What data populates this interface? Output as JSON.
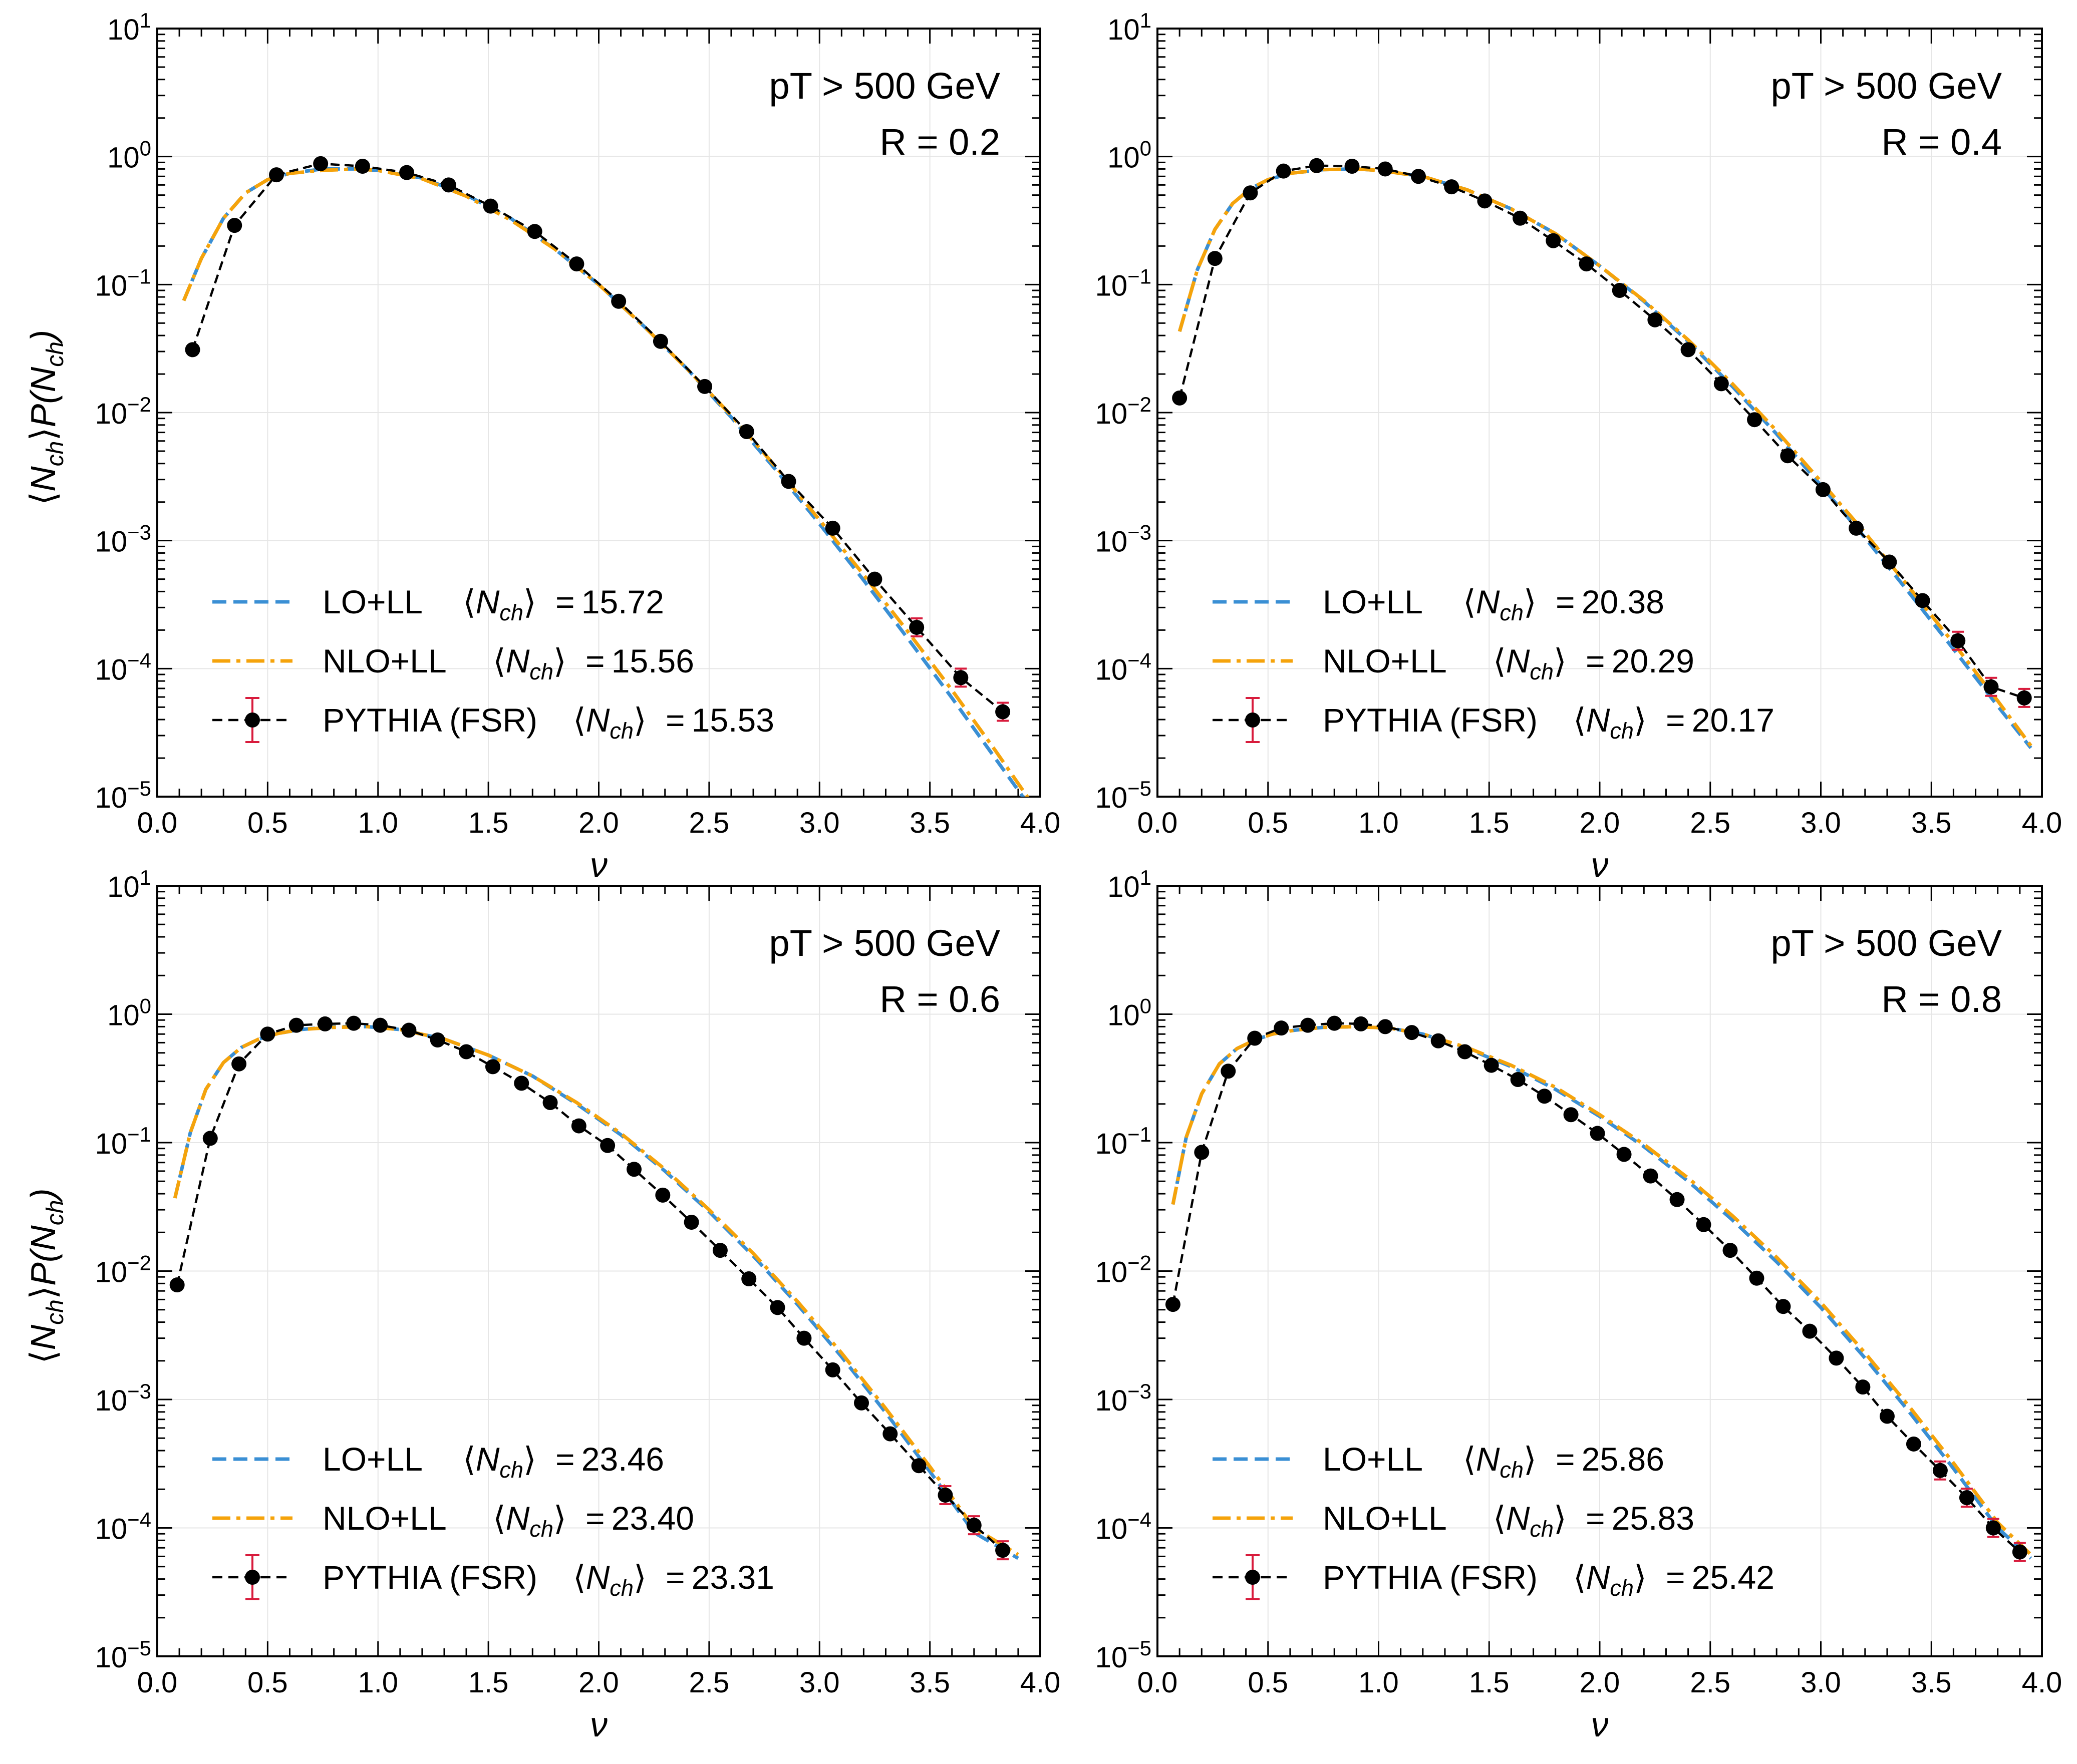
{
  "chart_data": [
    {
      "type": "line",
      "annotations": [
        "pT > 500 GeV",
        "R = 0.2"
      ],
      "xlabel": "ν",
      "ylabel": "⟨N_ch⟩P(N_ch)",
      "xlim": [
        0.0,
        4.0
      ],
      "ylim": [
        1e-05,
        10
      ],
      "yscale": "log",
      "grid": true,
      "legend_position": "lower-left",
      "series": [
        {
          "name": "LO+LL",
          "mean_label": "15.72",
          "style": "dashed",
          "x": [
            0.12,
            0.2,
            0.3,
            0.4,
            0.5,
            0.6,
            0.75,
            0.9,
            1.0,
            1.2,
            1.4,
            1.6,
            1.8,
            2.0,
            2.2,
            2.4,
            2.6,
            2.8,
            3.0,
            3.2,
            3.4,
            3.6,
            3.8,
            3.95
          ],
          "y": [
            0.075,
            0.16,
            0.33,
            0.52,
            0.66,
            0.74,
            0.8,
            0.8,
            0.78,
            0.68,
            0.5,
            0.33,
            0.19,
            0.1,
            0.048,
            0.022,
            0.0092,
            0.0036,
            0.00135,
            0.00049,
            0.000172,
            5.9e-05,
            1.95e-05,
            8.5e-06
          ]
        },
        {
          "name": "NLO+LL",
          "mean_label": "15.56",
          "style": "dashdot",
          "x": [
            0.12,
            0.2,
            0.3,
            0.4,
            0.5,
            0.6,
            0.75,
            0.9,
            1.0,
            1.2,
            1.4,
            1.6,
            1.8,
            2.0,
            2.2,
            2.4,
            2.6,
            2.8,
            3.0,
            3.2,
            3.4,
            3.6,
            3.8,
            3.95
          ],
          "y": [
            0.075,
            0.16,
            0.33,
            0.52,
            0.66,
            0.74,
            0.78,
            0.8,
            0.78,
            0.67,
            0.49,
            0.32,
            0.19,
            0.1,
            0.048,
            0.022,
            0.0095,
            0.0038,
            0.00145,
            0.00054,
            0.000195,
            6.8e-05,
            2.25e-05,
            9.5e-06
          ]
        },
        {
          "name": "PYTHIA (FSR)",
          "mean_label": "15.53",
          "style": "dashed-markers",
          "x": [
            0.16,
            0.35,
            0.54,
            0.74,
            0.93,
            1.13,
            1.32,
            1.51,
            1.71,
            1.9,
            2.09,
            2.28,
            2.48,
            2.67,
            2.86,
            3.06,
            3.25,
            3.44,
            3.64,
            3.83
          ],
          "y": [
            0.031,
            0.29,
            0.72,
            0.88,
            0.84,
            0.75,
            0.6,
            0.41,
            0.26,
            0.145,
            0.074,
            0.036,
            0.016,
            0.0071,
            0.0029,
            0.00125,
            0.0005,
            0.00021,
            8.5e-05,
            4.6e-05
          ]
        }
      ],
      "mean_symbol": "N",
      "mean_subscript": "ch",
      "equals": "="
    },
    {
      "type": "line",
      "annotations": [
        "pT > 500 GeV",
        "R = 0.4"
      ],
      "xlabel": "ν",
      "ylabel": "",
      "xlim": [
        0.0,
        4.0
      ],
      "ylim": [
        1e-05,
        10
      ],
      "yscale": "log",
      "grid": true,
      "legend_position": "lower-left",
      "series": [
        {
          "name": "LO+LL",
          "mean_label": "20.38",
          "style": "dashed",
          "x": [
            0.1,
            0.18,
            0.26,
            0.34,
            0.42,
            0.5,
            0.6,
            0.75,
            0.9,
            1.0,
            1.2,
            1.4,
            1.6,
            1.8,
            2.0,
            2.2,
            2.4,
            2.6,
            2.8,
            3.0,
            3.2,
            3.4,
            3.6,
            3.8,
            3.95
          ],
          "y": [
            0.043,
            0.13,
            0.27,
            0.43,
            0.56,
            0.66,
            0.74,
            0.79,
            0.8,
            0.78,
            0.7,
            0.55,
            0.39,
            0.25,
            0.14,
            0.074,
            0.036,
            0.016,
            0.0068,
            0.0027,
            0.00105,
            0.00039,
            0.000142,
            5.1e-05,
            2.4e-05
          ]
        },
        {
          "name": "NLO+LL",
          "mean_label": "20.29",
          "style": "dashdot",
          "x": [
            0.1,
            0.18,
            0.26,
            0.34,
            0.42,
            0.5,
            0.6,
            0.75,
            0.9,
            1.0,
            1.2,
            1.4,
            1.6,
            1.8,
            2.0,
            2.2,
            2.4,
            2.6,
            2.8,
            3.0,
            3.2,
            3.4,
            3.6,
            3.8,
            3.95
          ],
          "y": [
            0.043,
            0.13,
            0.27,
            0.43,
            0.56,
            0.66,
            0.74,
            0.79,
            0.8,
            0.78,
            0.7,
            0.55,
            0.39,
            0.25,
            0.14,
            0.075,
            0.037,
            0.0168,
            0.0072,
            0.0029,
            0.00115,
            0.00043,
            0.000158,
            5.6e-05,
            2.5e-05
          ]
        },
        {
          "name": "PYTHIA (FSR)",
          "mean_label": "20.17",
          "style": "dashed-markers",
          "x": [
            0.1,
            0.26,
            0.42,
            0.57,
            0.72,
            0.88,
            1.03,
            1.18,
            1.33,
            1.48,
            1.64,
            1.79,
            1.94,
            2.09,
            2.25,
            2.4,
            2.55,
            2.7,
            2.85,
            3.01,
            3.16,
            3.31,
            3.46,
            3.62,
            3.77,
            3.92
          ],
          "y": [
            0.013,
            0.16,
            0.52,
            0.77,
            0.85,
            0.84,
            0.8,
            0.7,
            0.58,
            0.45,
            0.33,
            0.22,
            0.145,
            0.09,
            0.053,
            0.031,
            0.0168,
            0.0088,
            0.0046,
            0.0025,
            0.00125,
            0.00068,
            0.00034,
            0.000165,
            7.2e-05,
            5.9e-05
          ]
        }
      ],
      "mean_symbol": "N",
      "mean_subscript": "ch",
      "equals": "="
    },
    {
      "type": "line",
      "annotations": [
        "pT > 500 GeV",
        "R = 0.6"
      ],
      "xlabel": "ν",
      "ylabel": "⟨N_ch⟩P(N_ch)",
      "xlim": [
        0.0,
        4.0
      ],
      "ylim": [
        1e-05,
        10
      ],
      "yscale": "log",
      "grid": true,
      "legend_position": "lower-left",
      "series": [
        {
          "name": "LO+LL",
          "mean_label": "23.46",
          "style": "dashed",
          "x": [
            0.08,
            0.15,
            0.22,
            0.3,
            0.38,
            0.46,
            0.55,
            0.65,
            0.8,
            0.95,
            1.1,
            1.3,
            1.5,
            1.7,
            1.9,
            2.1,
            2.3,
            2.5,
            2.7,
            2.9,
            3.1,
            3.3,
            3.5,
            3.7,
            3.9
          ],
          "y": [
            0.037,
            0.12,
            0.26,
            0.42,
            0.55,
            0.64,
            0.71,
            0.76,
            0.8,
            0.8,
            0.76,
            0.64,
            0.48,
            0.33,
            0.2,
            0.115,
            0.06,
            0.029,
            0.0131,
            0.0055,
            0.00215,
            0.00079,
            0.000275,
            9.2e-05,
            5.8e-05
          ]
        },
        {
          "name": "NLO+LL",
          "mean_label": "23.40",
          "style": "dashdot",
          "x": [
            0.08,
            0.15,
            0.22,
            0.3,
            0.38,
            0.46,
            0.55,
            0.65,
            0.8,
            0.95,
            1.1,
            1.3,
            1.5,
            1.7,
            1.9,
            2.1,
            2.3,
            2.5,
            2.7,
            2.9,
            3.1,
            3.3,
            3.5,
            3.7,
            3.9
          ],
          "y": [
            0.037,
            0.12,
            0.26,
            0.42,
            0.55,
            0.64,
            0.71,
            0.76,
            0.79,
            0.8,
            0.76,
            0.64,
            0.48,
            0.33,
            0.205,
            0.118,
            0.062,
            0.03,
            0.0137,
            0.0058,
            0.0023,
            0.00085,
            0.0003,
            0.0001,
            6.2e-05
          ]
        },
        {
          "name": "PYTHIA (FSR)",
          "mean_label": "23.31",
          "style": "dashed-markers",
          "x": [
            0.09,
            0.24,
            0.37,
            0.5,
            0.63,
            0.76,
            0.89,
            1.01,
            1.14,
            1.27,
            1.4,
            1.52,
            1.65,
            1.78,
            1.91,
            2.04,
            2.16,
            2.29,
            2.42,
            2.55,
            2.68,
            2.81,
            2.93,
            3.06,
            3.19,
            3.32,
            3.45,
            3.57,
            3.7,
            3.83
          ],
          "y": [
            0.0078,
            0.108,
            0.41,
            0.7,
            0.82,
            0.84,
            0.85,
            0.82,
            0.75,
            0.63,
            0.51,
            0.39,
            0.29,
            0.205,
            0.135,
            0.095,
            0.062,
            0.039,
            0.024,
            0.0145,
            0.0087,
            0.0052,
            0.003,
            0.0017,
            0.00094,
            0.00054,
            0.000305,
            0.00018,
            0.000105,
            6.7e-05
          ]
        }
      ],
      "mean_symbol": "N",
      "mean_subscript": "ch",
      "equals": "="
    },
    {
      "type": "line",
      "annotations": [
        "pT > 500 GeV",
        "R = 0.8"
      ],
      "xlabel": "ν",
      "ylabel": "",
      "xlim": [
        0.0,
        4.0
      ],
      "ylim": [
        1e-05,
        10
      ],
      "yscale": "log",
      "grid": true,
      "legend_position": "lower-left",
      "series": [
        {
          "name": "LO+LL",
          "mean_label": "25.86",
          "style": "dashed",
          "x": [
            0.07,
            0.13,
            0.2,
            0.28,
            0.36,
            0.44,
            0.52,
            0.62,
            0.75,
            0.9,
            1.05,
            1.2,
            1.4,
            1.6,
            1.8,
            2.0,
            2.2,
            2.4,
            2.6,
            2.8,
            3.0,
            3.2,
            3.4,
            3.6,
            3.8,
            3.95
          ],
          "y": [
            0.033,
            0.11,
            0.24,
            0.41,
            0.54,
            0.63,
            0.7,
            0.75,
            0.79,
            0.8,
            0.78,
            0.7,
            0.54,
            0.39,
            0.26,
            0.16,
            0.093,
            0.05,
            0.025,
            0.0118,
            0.0052,
            0.0021,
            0.0008,
            0.00029,
            0.0001,
            5.8e-05
          ]
        },
        {
          "name": "NLO+LL",
          "mean_label": "25.83",
          "style": "dashdot",
          "x": [
            0.07,
            0.13,
            0.2,
            0.28,
            0.36,
            0.44,
            0.52,
            0.62,
            0.75,
            0.9,
            1.05,
            1.2,
            1.4,
            1.6,
            1.8,
            2.0,
            2.2,
            2.4,
            2.6,
            2.8,
            3.0,
            3.2,
            3.4,
            3.6,
            3.8,
            3.95
          ],
          "y": [
            0.033,
            0.11,
            0.24,
            0.41,
            0.54,
            0.63,
            0.7,
            0.75,
            0.79,
            0.8,
            0.78,
            0.7,
            0.55,
            0.4,
            0.27,
            0.165,
            0.097,
            0.053,
            0.027,
            0.0128,
            0.0057,
            0.0023,
            0.00088,
            0.00032,
            0.00011,
            6.2e-05
          ]
        },
        {
          "name": "PYTHIA (FSR)",
          "mean_label": "25.42",
          "style": "dashed-markers",
          "x": [
            0.07,
            0.2,
            0.32,
            0.44,
            0.56,
            0.68,
            0.8,
            0.92,
            1.03,
            1.15,
            1.27,
            1.39,
            1.51,
            1.63,
            1.75,
            1.87,
            1.99,
            2.11,
            2.23,
            2.35,
            2.47,
            2.59,
            2.71,
            2.83,
            2.95,
            3.07,
            3.19,
            3.3,
            3.42,
            3.54,
            3.66,
            3.78,
            3.9
          ],
          "y": [
            0.0055,
            0.084,
            0.36,
            0.65,
            0.78,
            0.82,
            0.85,
            0.84,
            0.8,
            0.72,
            0.62,
            0.51,
            0.4,
            0.31,
            0.23,
            0.165,
            0.118,
            0.081,
            0.055,
            0.036,
            0.023,
            0.0145,
            0.0088,
            0.0053,
            0.0034,
            0.0021,
            0.00125,
            0.00074,
            0.00045,
            0.00028,
            0.000172,
            0.0001,
            6.5e-05
          ]
        }
      ],
      "mean_symbol": "N",
      "mean_subscript": "ch",
      "equals": "="
    }
  ],
  "colors": {
    "lo_ll": "#3a8fd4",
    "nlo_ll": "#f5a30b",
    "pythia_line": "#000000",
    "pythia_marker": "#000000",
    "error_bar": "#d81b3c",
    "grid": "#e6e6e6",
    "axis": "#000000"
  }
}
